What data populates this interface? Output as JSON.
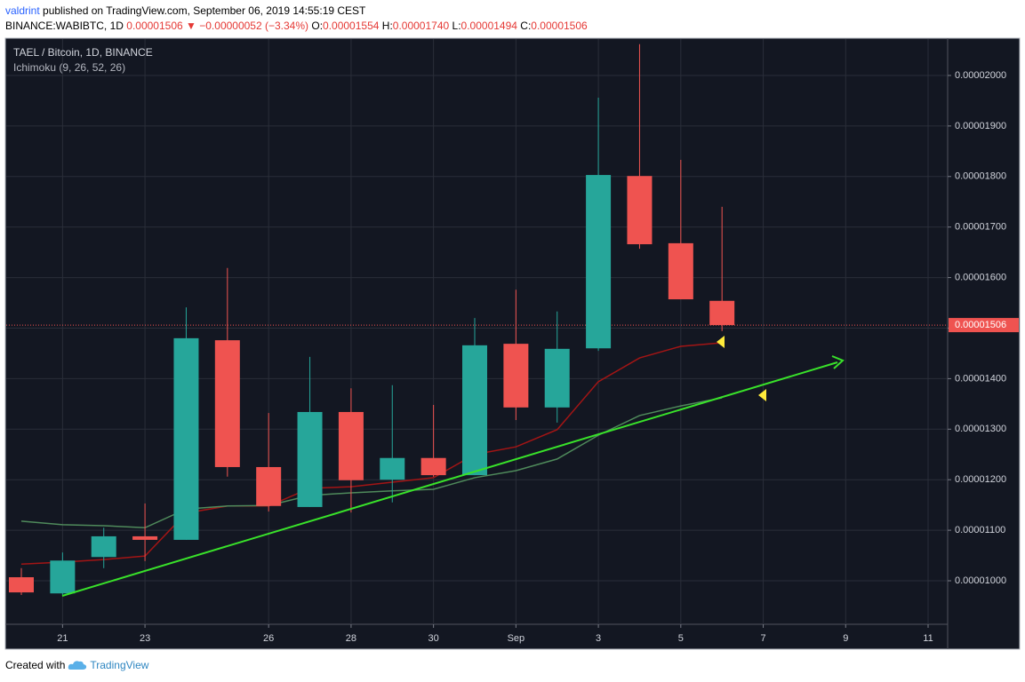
{
  "header": {
    "user": "valdrint",
    "published": "published on TradingView.com, September 06, 2019 14:55:19 CEST",
    "symbol": "BINANCE:WABIBTC, 1D",
    "last": "0.00001506",
    "arrow": "▼",
    "change": "−0.00000052 (−3.34%)",
    "ohlc": [
      {
        "label": "O:",
        "value": "0.00001554"
      },
      {
        "label": "H:",
        "value": "0.00001740"
      },
      {
        "label": "L:",
        "value": "0.00001494"
      },
      {
        "label": "C:",
        "value": "0.00001506"
      }
    ]
  },
  "chart_data": {
    "type": "candlestick",
    "title": "TAEL / Bitcoin, 1D, BINANCE",
    "indicator": "Ichimoku (9, 26, 52, 26)",
    "x": [
      "2019-08-20",
      "2019-08-21",
      "2019-08-22",
      "2019-08-23",
      "2019-08-24",
      "2019-08-25",
      "2019-08-26",
      "2019-08-27",
      "2019-08-28",
      "2019-08-29",
      "2019-08-30",
      "2019-08-31",
      "2019-09-01",
      "2019-09-02",
      "2019-09-03",
      "2019-09-04",
      "2019-09-05",
      "2019-09-06"
    ],
    "open": [
      1.007e-05,
      9.75e-06,
      1.047e-05,
      1.088e-05,
      1.081e-05,
      1.476e-05,
      1.225e-05,
      1.146e-05,
      1.334e-05,
      1.2e-05,
      1.243e-05,
      1.209e-05,
      1.469e-05,
      1.343e-05,
      1.46e-05,
      1.801e-05,
      1.668e-05,
      1.554e-05
    ],
    "high": [
      1.025e-05,
      1.056e-05,
      1.105e-05,
      1.153e-05,
      1.541e-05,
      1.619e-05,
      1.332e-05,
      1.443e-05,
      1.381e-05,
      1.387e-05,
      1.348e-05,
      1.52e-05,
      1.576e-05,
      1.533e-05,
      1.956e-05,
      2.062e-05,
      1.833e-05,
      1.74e-05
    ],
    "low": [
      9.72e-06,
      9.72e-06,
      1.025e-05,
      1.039e-05,
      1.081e-05,
      1.206e-05,
      1.137e-05,
      1.146e-05,
      1.135e-05,
      1.155e-05,
      1.206e-05,
      1.209e-05,
      1.318e-05,
      1.313e-05,
      1.455e-05,
      1.657e-05,
      1.557e-05,
      1.494e-05
    ],
    "close": [
      9.77e-06,
      1.04e-05,
      1.088e-05,
      1.081e-05,
      1.48e-05,
      1.225e-05,
      1.148e-05,
      1.334e-05,
      1.199e-05,
      1.243e-05,
      1.209e-05,
      1.466e-05,
      1.343e-05,
      1.459e-05,
      1.803e-05,
      1.666e-05,
      1.557e-05,
      1.506e-05
    ],
    "up_color": "#26a69a",
    "down_color": "#ef5350",
    "lines": [
      {
        "color": "#a31515",
        "values": [
          1.033e-05,
          1.037e-05,
          1.042e-05,
          1.049e-05,
          1.134e-05,
          1.148e-05,
          1.148e-05,
          1.183e-05,
          1.186e-05,
          1.195e-05,
          1.204e-05,
          1.25e-05,
          1.265e-05,
          1.299e-05,
          1.394e-05,
          1.441e-05,
          1.464e-05,
          1.471e-05
        ]
      },
      {
        "color": "#4f8a5b",
        "values": [
          1.118e-05,
          1.111e-05,
          1.109e-05,
          1.105e-05,
          1.142e-05,
          1.148e-05,
          1.149e-05,
          1.169e-05,
          1.174e-05,
          1.178e-05,
          1.181e-05,
          1.204e-05,
          1.218e-05,
          1.241e-05,
          1.288e-05,
          1.327e-05,
          1.346e-05,
          1.362e-05
        ]
      }
    ],
    "last_price": {
      "value": 1.506e-05,
      "label": "0.00001506"
    },
    "ylim": [
      9.139e-06,
      2.072e-05
    ],
    "yticks": [
      {
        "value": 1e-05,
        "label": "0.00001000"
      },
      {
        "value": 1.1e-05,
        "label": "0.00001100"
      },
      {
        "value": 1.2e-05,
        "label": "0.00001200"
      },
      {
        "value": 1.3e-05,
        "label": "0.00001300"
      },
      {
        "value": 1.4e-05,
        "label": "0.00001400"
      },
      {
        "value": 1.5e-05,
        "label": "0.00001500"
      },
      {
        "value": 1.6e-05,
        "label": "0.00001600"
      },
      {
        "value": 1.7e-05,
        "label": "0.00001700"
      },
      {
        "value": 1.8e-05,
        "label": "0.00001800"
      },
      {
        "value": 1.9e-05,
        "label": "0.00001900"
      },
      {
        "value": 2e-05,
        "label": "0.00002000"
      }
    ],
    "xlim": [
      "2019-08-20",
      "2019-09-11"
    ],
    "xticks": [
      {
        "value": "2019-08-21",
        "label": "21"
      },
      {
        "value": "2019-08-23",
        "label": "23"
      },
      {
        "value": "2019-08-26",
        "label": "26"
      },
      {
        "value": "2019-08-28",
        "label": "28"
      },
      {
        "value": "2019-08-30",
        "label": "30"
      },
      {
        "value": "2019-09-01",
        "label": "Sep"
      },
      {
        "value": "2019-09-03",
        "label": "3"
      },
      {
        "value": "2019-09-05",
        "label": "5"
      },
      {
        "value": "2019-09-07",
        "label": "7"
      },
      {
        "value": "2019-09-09",
        "label": "9"
      },
      {
        "value": "2019-09-11",
        "label": "11"
      }
    ],
    "grid": true
  },
  "footer": {
    "created": "Created with",
    "brand": "TradingView"
  }
}
